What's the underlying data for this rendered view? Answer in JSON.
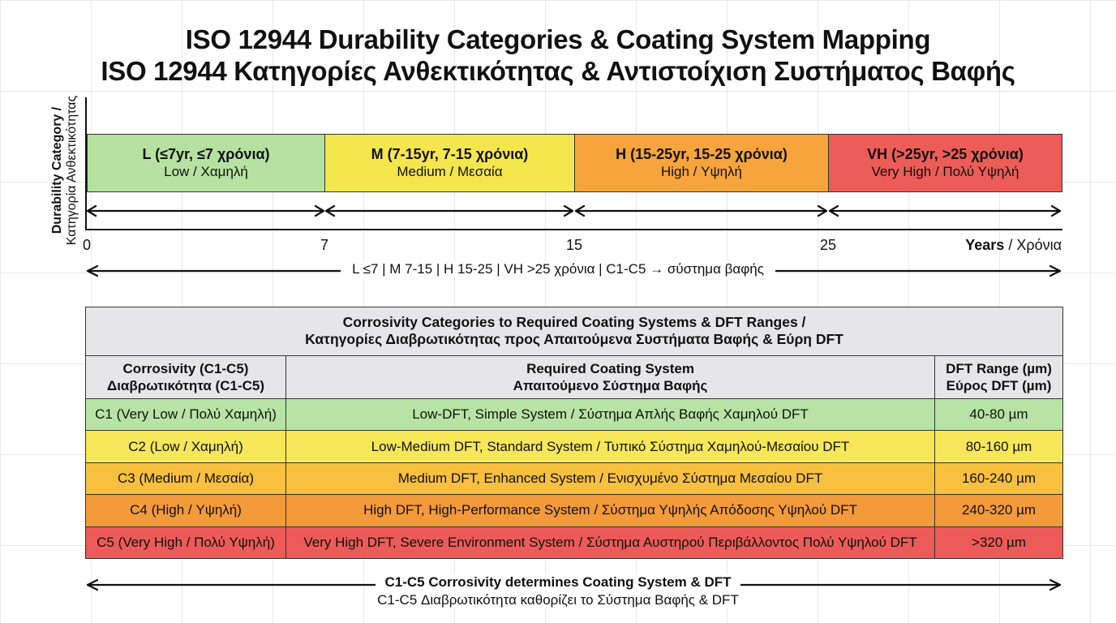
{
  "title": {
    "line1": "ISO 12944 Durability Categories & Coating System Mapping",
    "line2": "ISO 12944 Κατηγορίες Ανθεκτικότητας & Αντιστοίχιση Συστήματος Βαφής"
  },
  "timeline": {
    "y_label_en": "Durability Category /",
    "y_label_gr": "Κατηγορία Ανθεκτικότητας",
    "bands": [
      {
        "label": "L (≤7yr, ≤7 χρόνια)",
        "sublabel": "Low / Χαμηλή",
        "start": 0,
        "end": 7,
        "color": "#b5e2a1"
      },
      {
        "label": "M (7-15yr, 7-15 χρόνια)",
        "sublabel": "Medium / Μεσαία",
        "start": 7,
        "end": 15,
        "color": "#f4e64d"
      },
      {
        "label": "H (15-25yr, 15-25 χρόνια)",
        "sublabel": "High / Υψηλή",
        "start": 15,
        "end": 25,
        "color": "#f6a43c"
      },
      {
        "label": "VH (>25yr, >25 χρόνια)",
        "sublabel": "Very High / Πολύ Υψηλή",
        "start": 25,
        "end": 35,
        "color": "#ec5d58"
      }
    ],
    "ticks": [
      "0",
      "7",
      "15",
      "25"
    ],
    "x_unit_en": "Years",
    "x_unit_gr": " / Χρόνια",
    "summary": "L ≤7 | M 7-15 | H 15-25 | VH >25 χρόνια | C1-C5 → σύστημα βαφής"
  },
  "table": {
    "title_en": "Corrosivity Categories to Required Coating Systems & DFT Ranges /",
    "title_gr": "Κατηγορίες Διαβρωτικότητας προς Απαιτούμενα Συστήματα Βαφής & Εύρη DFT",
    "headers": [
      {
        "en": "Corrosivity (C1-C5)",
        "gr": "Διαβρωτικότητα (C1-C5)"
      },
      {
        "en": "Required Coating System",
        "gr": "Απαιτούμενο Σύστημα Βαφής"
      },
      {
        "en": "DFT Range (µm)",
        "gr": "Εύρος DFT (µm)"
      }
    ],
    "rows": [
      {
        "cat": "C1 (Very Low / Πολύ Χαμηλή)",
        "system": "Low-DFT, Simple System / Σύστημα Απλής Βαφής Χαμηλού DFT",
        "dft": "40-80 µm",
        "color": "#b7e3a4"
      },
      {
        "cat": "C2 (Low / Χαμηλή)",
        "system": "Low-Medium DFT, Standard System / Τυπικό Σύστημα Χαμηλού-Μεσαίου DFT",
        "dft": "80-160 µm",
        "color": "#f6e758"
      },
      {
        "cat": "C3 (Medium / Μεσαία)",
        "system": "Medium DFT, Enhanced System / Ενισχυμένο Σύστημα Μεσαίου DFT",
        "dft": "160-240 µm",
        "color": "#f7c03f"
      },
      {
        "cat": "C4 (High / Υψηλή)",
        "system": "High DFT, High-Performance System / Σύστημα Υψηλής Απόδοσης Υψηλού DFT",
        "dft": "240-320 µm",
        "color": "#f39a3b"
      },
      {
        "cat": "C5 (Very High / Πολύ Υψηλή)",
        "system": "Very High DFT, Severe Environment System / Σύστημα Αυστηρού Περιβάλλοντος Πολύ Υψηλού DFT",
        "dft": ">320 µm",
        "color": "#ec5b57"
      }
    ]
  },
  "footer": {
    "line1": "C1-C5 Corrosivity determines Coating System & DFT",
    "line2": "C1-C5 Διαβρωτικότητα καθορίζει το Σύστημα Βαφής & DFT"
  }
}
